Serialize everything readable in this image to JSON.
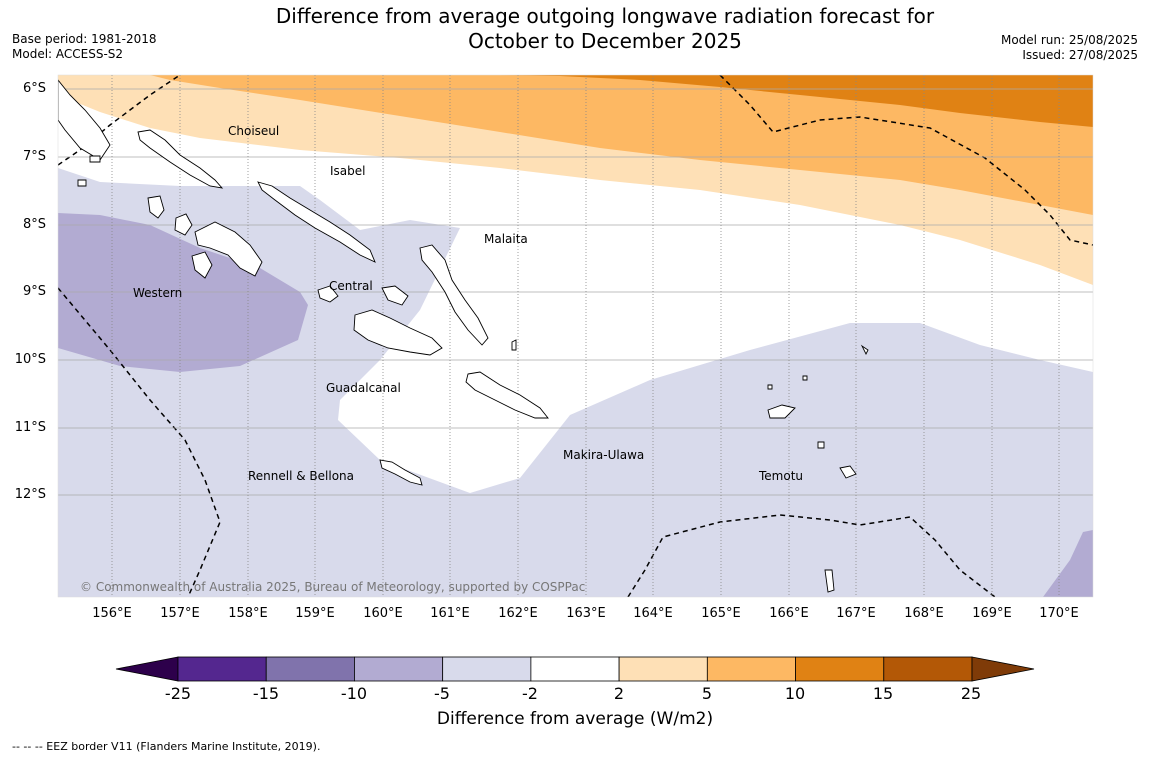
{
  "title_line1": "Difference from average outgoing longwave radiation forecast for",
  "title_line2": "October to December 2025",
  "base_period": "Base period: 1981-2018",
  "model": "Model: ACCESS-S2",
  "model_run": "Model run: 25/08/2025",
  "issued": "Issued: 27/08/2025",
  "lat_labels": [
    "6°S",
    "7°S",
    "8°S",
    "9°S",
    "10°S",
    "11°S",
    "12°S"
  ],
  "lon_labels": [
    "156°E",
    "157°E",
    "158°E",
    "159°E",
    "160°E",
    "161°E",
    "162°E",
    "163°E",
    "164°E",
    "165°E",
    "166°E",
    "167°E",
    "168°E",
    "169°E",
    "170°E"
  ],
  "regions": {
    "choiseul": "Choiseul",
    "isabel": "Isabel",
    "malaita": "Malaita",
    "western": "Western",
    "central": "Central",
    "guadalcanal": "Guadalcanal",
    "makira_ulawa": "Makira-Ulawa",
    "temotu": "Temotu",
    "rennell_bellona": "Rennell & Bellona"
  },
  "copyright": "© Commonwealth of Australia 2025, Bureau of Meteorology, supported by COSPPac",
  "colorbar": {
    "ticks": [
      "-25",
      "-15",
      "-10",
      "-5",
      "-2",
      "2",
      "5",
      "10",
      "15",
      "25"
    ],
    "colors": [
      "#54278f",
      "#8073ac",
      "#b2abd2",
      "#d8daeb",
      "#ffffff",
      "#fee0b6",
      "#fdb863",
      "#e08214",
      "#b35806"
    ],
    "under_color": "#2d004b",
    "over_color": "#7f3b08",
    "label": "Difference from average (W/m2)"
  },
  "footnote": "--  --  -- EEZ border V11 (Flanders Marine Institute, 2019)."
}
